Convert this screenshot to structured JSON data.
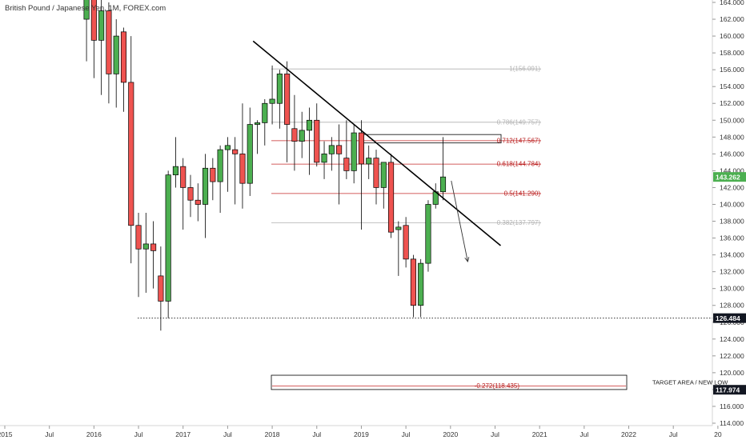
{
  "header": {
    "title": "British Pound / Japanese Yen, 1M, FOREX.com"
  },
  "colors": {
    "up": "#4caf50",
    "down": "#ef5350",
    "fib_red": "#c62828",
    "fib_gray": "#b0b0b0",
    "trendline": "#000000",
    "axis_text": "#333333",
    "last_price_bg": "#4caf50"
  },
  "chart_data": {
    "type": "candlestick",
    "title": "British Pound / Japanese Yen, 1M, FOREX.com",
    "x_tick_labels": [
      "2015",
      "Jul",
      "2016",
      "Jul",
      "2017",
      "Jul",
      "2018",
      "Jul",
      "2019",
      "Jul",
      "2020",
      "Jul",
      "2021",
      "Jul",
      "2022",
      "Jul",
      "20"
    ],
    "y_tick_labels": [
      "114.000",
      "116.000",
      "118.000",
      "120.000",
      "122.000",
      "124.000",
      "126.000",
      "128.000",
      "130.000",
      "132.000",
      "134.000",
      "136.000",
      "138.000",
      "140.000",
      "142.000",
      "144.000",
      "146.000",
      "148.000",
      "150.000",
      "152.000",
      "154.000",
      "156.000",
      "158.000",
      "160.000",
      "162.000",
      "164.000"
    ],
    "ylim": [
      113.5,
      165.2
    ],
    "candles": [
      {
        "date": "2015-12",
        "o": 162.0,
        "h": 168.5,
        "l": 157.0,
        "c": 165.5
      },
      {
        "date": "2016-01",
        "o": 165.5,
        "h": 166.0,
        "l": 155.0,
        "c": 159.5
      },
      {
        "date": "2016-02",
        "o": 159.5,
        "h": 165.0,
        "l": 153.0,
        "c": 163.0
      },
      {
        "date": "2016-03",
        "o": 163.0,
        "h": 164.0,
        "l": 152.0,
        "c": 155.5
      },
      {
        "date": "2016-04",
        "o": 155.5,
        "h": 162.0,
        "l": 151.5,
        "c": 160.0
      },
      {
        "date": "2016-05",
        "o": 160.5,
        "h": 161.0,
        "l": 151.0,
        "c": 154.5
      },
      {
        "date": "2016-06",
        "o": 154.5,
        "h": 160.0,
        "l": 133.0,
        "c": 137.5
      },
      {
        "date": "2016-07",
        "o": 137.5,
        "h": 139.0,
        "l": 129.0,
        "c": 134.7
      },
      {
        "date": "2016-08",
        "o": 134.7,
        "h": 139.0,
        "l": 129.5,
        "c": 135.3
      },
      {
        "date": "2016-09",
        "o": 135.3,
        "h": 138.0,
        "l": 130.0,
        "c": 134.5
      },
      {
        "date": "2016-10",
        "o": 131.5,
        "h": 135.0,
        "l": 125.0,
        "c": 128.5
      },
      {
        "date": "2016-11",
        "o": 128.5,
        "h": 144.0,
        "l": 126.5,
        "c": 143.5
      },
      {
        "date": "2016-12",
        "o": 143.5,
        "h": 148.0,
        "l": 142.0,
        "c": 144.5
      },
      {
        "date": "2017-01",
        "o": 144.5,
        "h": 145.5,
        "l": 137.0,
        "c": 142.0
      },
      {
        "date": "2017-02",
        "o": 142.0,
        "h": 143.5,
        "l": 138.5,
        "c": 140.5
      },
      {
        "date": "2017-03",
        "o": 140.5,
        "h": 142.5,
        "l": 138.0,
        "c": 140.0
      },
      {
        "date": "2017-04",
        "o": 140.0,
        "h": 146.0,
        "l": 136.0,
        "c": 144.3
      },
      {
        "date": "2017-05",
        "o": 144.3,
        "h": 145.5,
        "l": 140.5,
        "c": 142.7
      },
      {
        "date": "2017-06",
        "o": 142.7,
        "h": 147.0,
        "l": 139.0,
        "c": 146.5
      },
      {
        "date": "2017-07",
        "o": 146.5,
        "h": 148.0,
        "l": 141.5,
        "c": 147.0
      },
      {
        "date": "2017-08",
        "o": 146.5,
        "h": 148.0,
        "l": 140.0,
        "c": 146.0
      },
      {
        "date": "2017-09",
        "o": 146.0,
        "h": 152.0,
        "l": 139.5,
        "c": 142.5
      },
      {
        "date": "2017-10",
        "o": 142.5,
        "h": 151.5,
        "l": 141.0,
        "c": 149.5
      },
      {
        "date": "2017-11",
        "o": 149.5,
        "h": 150.0,
        "l": 146.0,
        "c": 149.7
      },
      {
        "date": "2017-12",
        "o": 149.7,
        "h": 152.5,
        "l": 147.0,
        "c": 152.0
      },
      {
        "date": "2018-01",
        "o": 152.0,
        "h": 156.5,
        "l": 149.5,
        "c": 152.5
      },
      {
        "date": "2018-02",
        "o": 152.0,
        "h": 156.0,
        "l": 149.0,
        "c": 155.5
      },
      {
        "date": "2018-03",
        "o": 155.5,
        "h": 157.0,
        "l": 145.0,
        "c": 149.5
      },
      {
        "date": "2018-04",
        "o": 149.0,
        "h": 153.0,
        "l": 144.0,
        "c": 147.5
      },
      {
        "date": "2018-05",
        "o": 147.5,
        "h": 151.0,
        "l": 145.5,
        "c": 148.8
      },
      {
        "date": "2018-06",
        "o": 148.8,
        "h": 151.5,
        "l": 143.5,
        "c": 150.0
      },
      {
        "date": "2018-07",
        "o": 150.0,
        "h": 152.0,
        "l": 144.5,
        "c": 145.0
      },
      {
        "date": "2018-08",
        "o": 145.0,
        "h": 147.5,
        "l": 143.0,
        "c": 146.0
      },
      {
        "date": "2018-09",
        "o": 146.0,
        "h": 148.0,
        "l": 144.0,
        "c": 147.0
      },
      {
        "date": "2018-10",
        "o": 147.0,
        "h": 149.5,
        "l": 140.0,
        "c": 146.0
      },
      {
        "date": "2018-11",
        "o": 145.5,
        "h": 150.0,
        "l": 143.0,
        "c": 144.0
      },
      {
        "date": "2018-12",
        "o": 144.0,
        "h": 149.5,
        "l": 142.5,
        "c": 148.5
      },
      {
        "date": "2019-01",
        "o": 148.5,
        "h": 150.0,
        "l": 137.0,
        "c": 144.8
      },
      {
        "date": "2019-02",
        "o": 144.8,
        "h": 147.0,
        "l": 143.0,
        "c": 145.5
      },
      {
        "date": "2019-03",
        "o": 145.5,
        "h": 146.5,
        "l": 140.0,
        "c": 142.0
      },
      {
        "date": "2019-04",
        "o": 142.0,
        "h": 144.5,
        "l": 139.5,
        "c": 145.0
      },
      {
        "date": "2019-05",
        "o": 145.0,
        "h": 146.0,
        "l": 136.0,
        "c": 136.7
      },
      {
        "date": "2019-06",
        "o": 137.0,
        "h": 138.0,
        "l": 131.5,
        "c": 137.3
      },
      {
        "date": "2019-07",
        "o": 137.5,
        "h": 138.5,
        "l": 132.5,
        "c": 133.5
      },
      {
        "date": "2019-08",
        "o": 133.5,
        "h": 134.0,
        "l": 126.6,
        "c": 128.0
      },
      {
        "date": "2019-09",
        "o": 128.0,
        "h": 133.5,
        "l": 126.6,
        "c": 133.0
      },
      {
        "date": "2019-10",
        "o": 133.0,
        "h": 140.5,
        "l": 132.0,
        "c": 140.0
      },
      {
        "date": "2019-11",
        "o": 140.0,
        "h": 142.5,
        "l": 139.5,
        "c": 141.5
      },
      {
        "date": "2019-12",
        "o": 141.5,
        "h": 148.0,
        "l": 140.5,
        "c": 143.26
      }
    ],
    "trendline": {
      "start": {
        "date": "2017-10",
        "value": 159.4
      },
      "end": {
        "date": "2020-07",
        "value": 135.1
      }
    },
    "fib_levels": [
      {
        "label": "1(156.091)",
        "value": 156.091,
        "style": "gray"
      },
      {
        "label": "0.786(149.757)",
        "value": 149.757,
        "style": "gray"
      },
      {
        "label": "0.712(147.567)",
        "value": 147.567,
        "style": "red"
      },
      {
        "label": "0.618(144.784)",
        "value": 144.784,
        "style": "red"
      },
      {
        "label": "0.5(141.290)",
        "value": 141.29,
        "style": "red"
      },
      {
        "label": "0.382(137.797)",
        "value": 137.797,
        "style": "gray"
      },
      {
        "label": "-0.272(118.435)",
        "value": 118.435,
        "style": "red"
      }
    ],
    "resistance_box": {
      "y1": 148.3,
      "y2": 147.3
    },
    "target_box": {
      "y1": 119.7,
      "y2": 118.0
    },
    "support_line": {
      "value": 126.484
    },
    "projection_arrow": {
      "from": {
        "date": "2020-01",
        "value": 142.8
      },
      "to": {
        "date": "2020-03",
        "value": 133.2
      }
    },
    "annotations": [
      "TARGET AREA / NEW LOW"
    ],
    "price_labels": [
      {
        "text": "143.262",
        "value": 143.262,
        "style": "green"
      },
      {
        "text": "126.484",
        "value": 126.484,
        "style": "dark"
      },
      {
        "text": "117.974",
        "value": 117.974,
        "style": "dark"
      }
    ]
  }
}
